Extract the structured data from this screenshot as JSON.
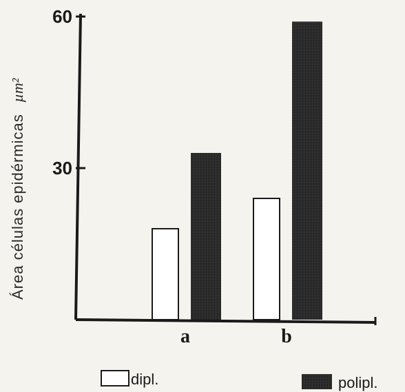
{
  "chart_data": {
    "type": "bar",
    "categories": [
      "a",
      "b"
    ],
    "series": [
      {
        "name": "dipl.",
        "values": [
          18,
          24
        ],
        "color": "#ffffff"
      },
      {
        "name": "polipl.",
        "values": [
          33,
          59
        ],
        "color": "#2b2b2b"
      }
    ],
    "ylabel": "Área células epidérmicas",
    "yunit": "µm²",
    "yticks": [
      30,
      60
    ],
    "ylim": [
      0,
      60
    ],
    "grid": false,
    "legend": "bottom"
  }
}
